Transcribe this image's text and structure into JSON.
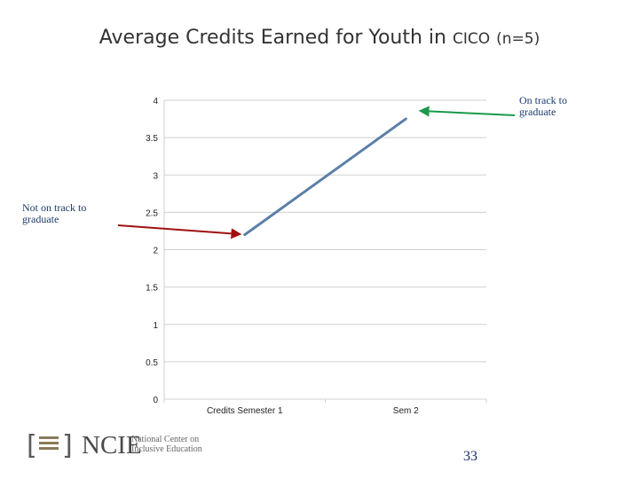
{
  "slide": {
    "title_main": "Average Credits Earned for Youth in",
    "title_cico": "CICO",
    "title_n": "(n=5)",
    "page_number": "33"
  },
  "annotations": {
    "on_track": "On track to graduate",
    "not_on_track": "Not on track to graduate"
  },
  "colors": {
    "series": "#5b7fa8",
    "arrow_green": "#1a9a4a",
    "arrow_red": "#a01010",
    "grid": "#d0d0d0"
  },
  "logo": {
    "acronym": "NCIE",
    "full_name": "National Center on Inclusive Education"
  },
  "chart_data": {
    "type": "line",
    "title": "Average Credits Earned for Youth in CICO (n=5)",
    "categories": [
      "Credits Semester 1",
      "Sem 2"
    ],
    "series": [
      {
        "values": [
          2.2,
          3.75
        ]
      }
    ],
    "ylim": [
      0,
      4
    ],
    "yticks": [
      "0",
      "0.5",
      "1",
      "1.5",
      "2",
      "2.5",
      "3",
      "3.5",
      "4"
    ],
    "grid": true,
    "legend": "none"
  }
}
